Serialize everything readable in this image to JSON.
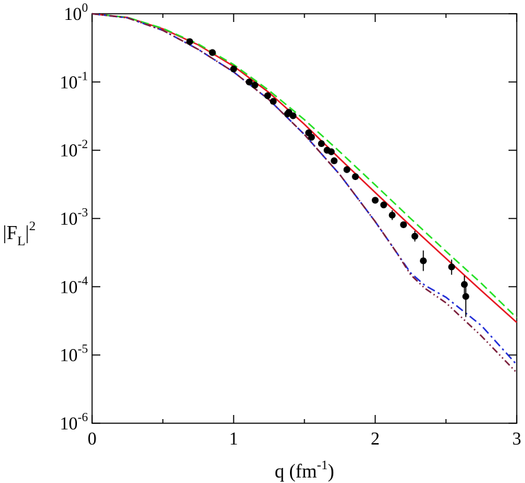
{
  "chart_data": {
    "type": "line",
    "title": "",
    "xlabel": {
      "base": "q (fm",
      "sup": "-1",
      "tail": ")"
    },
    "ylabel": {
      "pre": "|F",
      "sub": "L",
      "post": "|",
      "sup": "2"
    },
    "xlim": [
      0,
      3
    ],
    "ylim": [
      1e-06,
      1
    ],
    "yscale": "log",
    "grid": false,
    "x_ticks": [
      "0",
      "1",
      "2",
      "3"
    ],
    "x_tick_values": [
      0,
      1,
      2,
      3
    ],
    "y_ticks": [
      {
        "value": 1.0,
        "base": "10",
        "exp": "0"
      },
      {
        "value": 0.1,
        "base": "10",
        "exp": "-1"
      },
      {
        "value": 0.01,
        "base": "10",
        "exp": "-2"
      },
      {
        "value": 0.001,
        "base": "10",
        "exp": "-3"
      },
      {
        "value": 0.0001,
        "base": "10",
        "exp": "-4"
      },
      {
        "value": 1e-05,
        "base": "10",
        "exp": "-5"
      },
      {
        "value": 1e-06,
        "base": "10",
        "exp": "-6"
      }
    ],
    "colors": {
      "red": "#e6151f",
      "green": "#22e022",
      "blue": "#1f2bd6",
      "maroon": "#7a1d3a",
      "points": "#000000"
    },
    "series": [
      {
        "style": "solid",
        "color": "red",
        "x": [
          0,
          0.25,
          0.5,
          0.75,
          1.0,
          1.25,
          1.5,
          1.75,
          2.0,
          2.25,
          2.5,
          2.75,
          3.0
        ],
        "y": [
          1.0,
          0.88,
          0.6,
          0.35,
          0.17,
          0.07,
          0.024,
          0.0075,
          0.0024,
          0.00078,
          0.00026,
          8.75e-05,
          3e-05
        ]
      },
      {
        "style": "dashed",
        "color": "green",
        "x": [
          0,
          0.25,
          0.5,
          0.75,
          1.0,
          1.25,
          1.5,
          1.75,
          2.0,
          2.25,
          2.5,
          2.75,
          3.0
        ],
        "y": [
          1.0,
          0.885,
          0.61,
          0.36,
          0.18,
          0.075,
          0.028,
          0.0095,
          0.0031,
          0.001,
          0.00033,
          0.000112,
          3.5e-05
        ]
      },
      {
        "style": "dash-dot",
        "color": "blue",
        "x": [
          0,
          0.25,
          0.5,
          0.75,
          1.0,
          1.25,
          1.5,
          1.75,
          2.0,
          2.15,
          2.25,
          2.35,
          2.5,
          2.75,
          3.0
        ],
        "y": [
          1.0,
          0.87,
          0.57,
          0.3,
          0.14,
          0.055,
          0.017,
          0.0044,
          0.0009,
          0.00032,
          0.00016,
          0.000105,
          7e-05,
          2.7e-05,
          7.2e-06
        ]
      },
      {
        "style": "dash-dot-dot",
        "color": "maroon",
        "x": [
          0,
          0.25,
          0.5,
          0.75,
          1.0,
          1.25,
          1.5,
          1.75,
          2.0,
          2.15,
          2.25,
          2.35,
          2.5,
          2.75,
          3.0
        ],
        "y": [
          1.0,
          0.87,
          0.57,
          0.3,
          0.14,
          0.055,
          0.017,
          0.0044,
          0.0009,
          0.00032,
          0.00015,
          9.5e-05,
          5.8e-05,
          1.9e-05,
          5.5e-06
        ]
      }
    ],
    "points": [
      {
        "x": 0.69,
        "y": 0.39
      },
      {
        "x": 0.85,
        "y": 0.27
      },
      {
        "x": 1.0,
        "y": 0.155
      },
      {
        "x": 1.11,
        "y": 0.1
      },
      {
        "x": 1.15,
        "y": 0.09
      },
      {
        "x": 1.24,
        "y": 0.063
      },
      {
        "x": 1.28,
        "y": 0.052
      },
      {
        "x": 1.38,
        "y": 0.034
      },
      {
        "x": 1.39,
        "y": 0.036
      },
      {
        "x": 1.42,
        "y": 0.032
      },
      {
        "x": 1.53,
        "y": 0.018
      },
      {
        "x": 1.55,
        "y": 0.0155
      },
      {
        "x": 1.62,
        "y": 0.0125
      },
      {
        "x": 1.66,
        "y": 0.01
      },
      {
        "x": 1.69,
        "y": 0.0095
      },
      {
        "x": 1.71,
        "y": 0.007
      },
      {
        "x": 1.8,
        "y": 0.0052
      },
      {
        "x": 1.86,
        "y": 0.0041
      },
      {
        "x": 2.0,
        "y": 0.00185
      },
      {
        "x": 2.06,
        "y": 0.00158
      },
      {
        "x": 2.12,
        "y": 0.00112,
        "err": [
          0.00095,
          0.00132
        ]
      },
      {
        "x": 2.2,
        "y": 0.00081
      },
      {
        "x": 2.28,
        "y": 0.00055,
        "err": [
          0.00046,
          0.00066
        ]
      },
      {
        "x": 2.34,
        "y": 0.00024,
        "err": [
          0.00017,
          0.00034
        ]
      },
      {
        "x": 2.54,
        "y": 0.000195,
        "err": [
          0.00015,
          0.00025
        ]
      },
      {
        "x": 2.63,
        "y": 0.000108,
        "err": [
          8e-05,
          0.000145
        ]
      },
      {
        "x": 2.64,
        "y": 7.2e-05,
        "err": [
          3.6e-05,
          0.000105
        ]
      }
    ]
  }
}
